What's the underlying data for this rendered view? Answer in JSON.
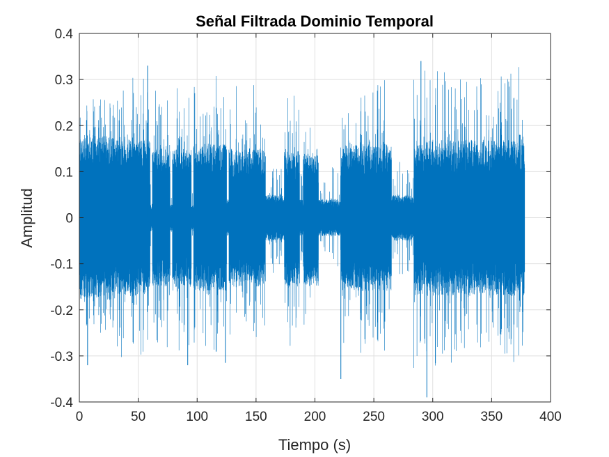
{
  "chart_data": {
    "type": "line",
    "title": "Señal Filtrada Dominio Temporal",
    "xlabel": "Tiempo (s)",
    "ylabel": "Amplitud",
    "xlim": [
      0,
      400
    ],
    "ylim": [
      -0.4,
      0.4
    ],
    "xticks": [
      0,
      50,
      100,
      150,
      200,
      250,
      300,
      350,
      400
    ],
    "yticks": [
      -0.4,
      -0.3,
      -0.2,
      -0.1,
      0,
      0.1,
      0.2,
      0.3,
      0.4
    ],
    "grid": true,
    "series": [
      {
        "color": "#0072BD",
        "segments": [
          {
            "t_start": 0,
            "t_end": 30,
            "dense": 0.18,
            "peak": 0.26
          },
          {
            "t_start": 30,
            "t_end": 60,
            "dense": 0.17,
            "peak": 0.31
          },
          {
            "t_start": 60,
            "t_end": 62,
            "dense": 0.03,
            "peak": 0.08
          },
          {
            "t_start": 62,
            "t_end": 77,
            "dense": 0.15,
            "peak": 0.29
          },
          {
            "t_start": 77,
            "t_end": 79,
            "dense": 0.03,
            "peak": 0.08
          },
          {
            "t_start": 79,
            "t_end": 95,
            "dense": 0.15,
            "peak": 0.29
          },
          {
            "t_start": 95,
            "t_end": 97,
            "dense": 0.03,
            "peak": 0.08
          },
          {
            "t_start": 97,
            "t_end": 125,
            "dense": 0.16,
            "peak": 0.31
          },
          {
            "t_start": 125,
            "t_end": 127,
            "dense": 0.04,
            "peak": 0.1
          },
          {
            "t_start": 127,
            "t_end": 158,
            "dense": 0.15,
            "peak": 0.29
          },
          {
            "t_start": 158,
            "t_end": 174,
            "dense": 0.05,
            "peak": 0.12
          },
          {
            "t_start": 174,
            "t_end": 187,
            "dense": 0.15,
            "peak": 0.29
          },
          {
            "t_start": 187,
            "t_end": 190,
            "dense": 0.04,
            "peak": 0.1
          },
          {
            "t_start": 190,
            "t_end": 203,
            "dense": 0.15,
            "peak": 0.29
          },
          {
            "t_start": 203,
            "t_end": 222,
            "dense": 0.04,
            "peak": 0.11
          },
          {
            "t_start": 222,
            "t_end": 265,
            "dense": 0.16,
            "peak": 0.3
          },
          {
            "t_start": 265,
            "t_end": 284,
            "dense": 0.05,
            "peak": 0.13
          },
          {
            "t_start": 284,
            "t_end": 378,
            "dense": 0.17,
            "peak": 0.33
          }
        ],
        "extremes": [
          {
            "t": 7,
            "value": -0.32
          },
          {
            "t": 58,
            "value": 0.33
          },
          {
            "t": 92,
            "value": -0.32
          },
          {
            "t": 124,
            "value": -0.315
          },
          {
            "t": 222,
            "value": -0.35
          },
          {
            "t": 290,
            "value": 0.34
          },
          {
            "t": 295,
            "value": -0.39
          }
        ]
      }
    ]
  }
}
